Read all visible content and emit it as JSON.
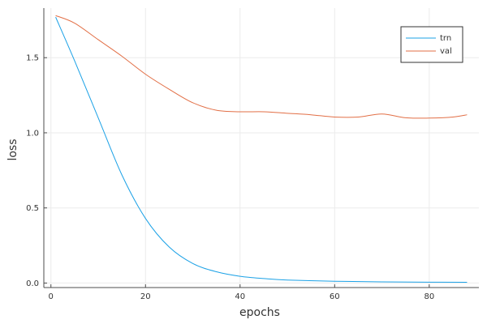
{
  "colors": {
    "trn": "#1ba1e6",
    "val": "#e26f46",
    "grid": "#ebebeb",
    "axis": "#4d4d4d"
  },
  "chart_data": {
    "type": "line",
    "title": "",
    "xlabel": "epochs",
    "ylabel": "loss",
    "xlim": [
      -1.5,
      90.5
    ],
    "ylim": [
      -0.03,
      1.83
    ],
    "xticks": [
      0,
      20,
      40,
      60,
      80
    ],
    "xtick_labels": [
      "0",
      "20",
      "40",
      "60",
      "80"
    ],
    "yticks": [
      0.0,
      0.5,
      1.0,
      1.5
    ],
    "ytick_labels": [
      "0.0",
      "0.5",
      "1.0",
      "1.5"
    ],
    "grid": true,
    "legend_position": "top-right",
    "series": [
      {
        "name": "trn",
        "x": [
          1,
          5,
          10,
          15,
          20,
          25,
          30,
          35,
          40,
          45,
          50,
          60,
          70,
          80,
          88
        ],
        "y": [
          1.77,
          1.48,
          1.1,
          0.72,
          0.43,
          0.24,
          0.13,
          0.075,
          0.045,
          0.03,
          0.02,
          0.012,
          0.008,
          0.006,
          0.005
        ]
      },
      {
        "name": "val",
        "x": [
          1,
          5,
          10,
          15,
          20,
          25,
          30,
          35,
          40,
          45,
          50,
          55,
          60,
          65,
          70,
          75,
          80,
          85,
          88
        ],
        "y": [
          1.78,
          1.73,
          1.62,
          1.51,
          1.39,
          1.29,
          1.2,
          1.15,
          1.14,
          1.14,
          1.13,
          1.12,
          1.105,
          1.105,
          1.125,
          1.1,
          1.098,
          1.105,
          1.12
        ]
      }
    ]
  }
}
